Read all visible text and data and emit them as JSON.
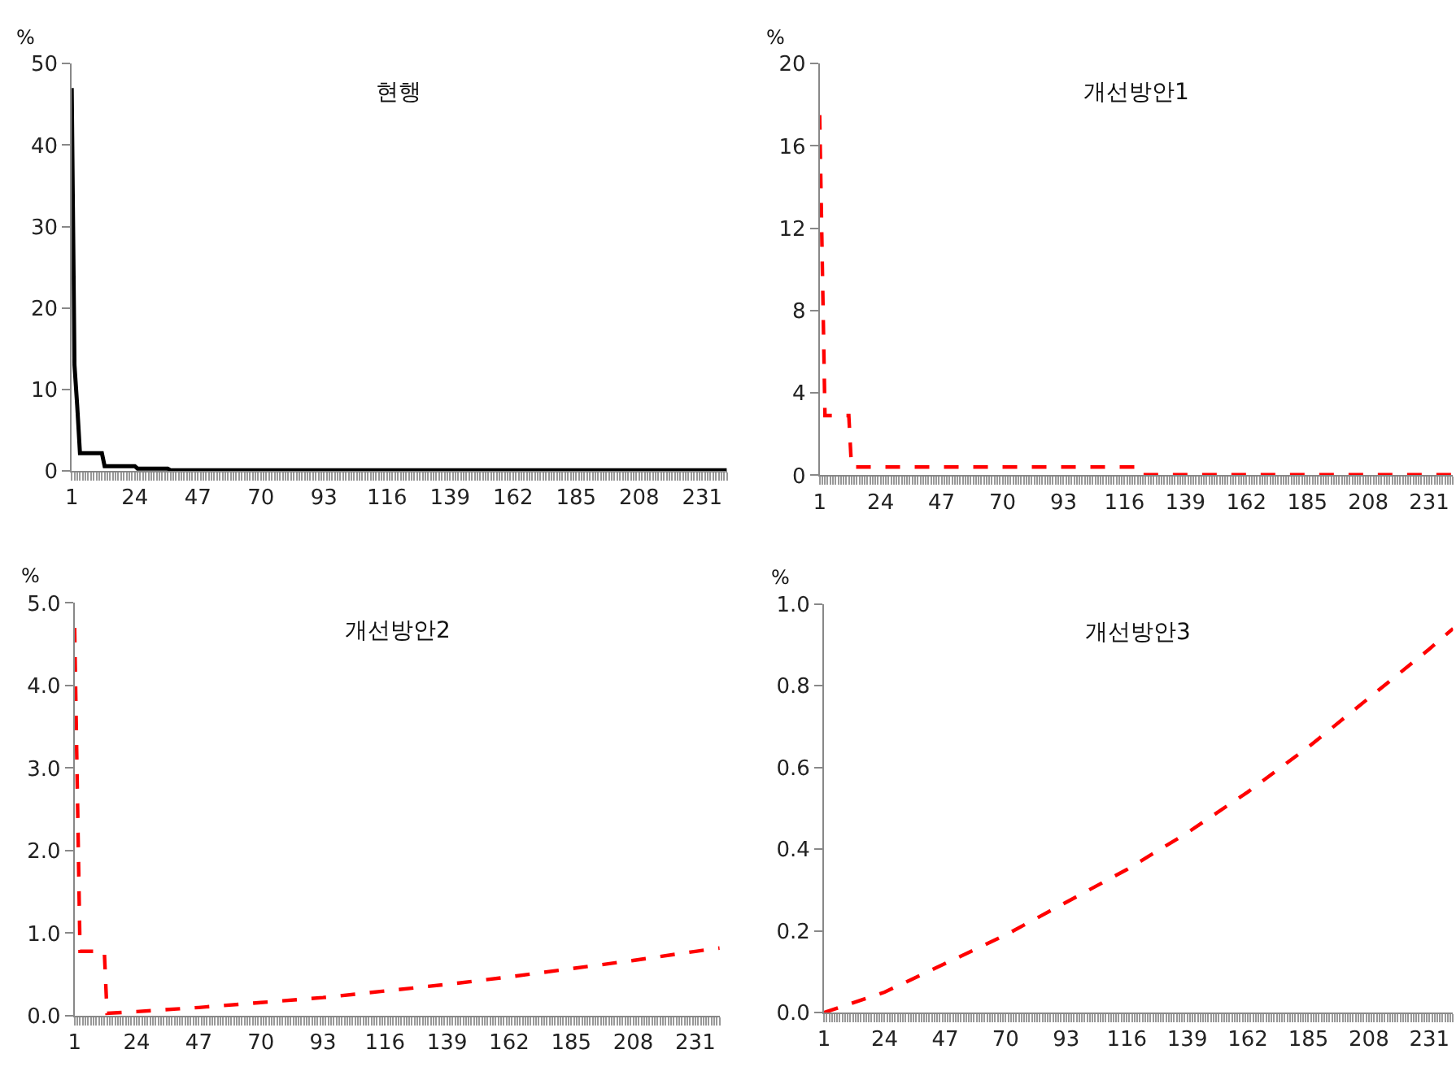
{
  "chart_data": [
    {
      "type": "line",
      "title": "현행",
      "ylabel": "%",
      "line_style": "solid",
      "color": "#000000",
      "x": [
        1,
        2,
        3,
        4,
        12,
        13,
        24,
        25,
        36,
        37,
        240
      ],
      "values": [
        47,
        13,
        8,
        2.2,
        2.2,
        0.6,
        0.6,
        0.3,
        0.3,
        0.1,
        0.1
      ],
      "xlim": [
        1,
        240
      ],
      "xticks": [
        1,
        24,
        47,
        70,
        93,
        116,
        139,
        162,
        185,
        208,
        231
      ],
      "ylim": [
        0,
        50
      ],
      "yticks": [
        0,
        10,
        20,
        30,
        40,
        50
      ]
    },
    {
      "type": "line",
      "title": "개선방안1",
      "ylabel": "%",
      "line_style": "dashed",
      "color": "#ff0000",
      "x": [
        1,
        3,
        12,
        13,
        121,
        122,
        240
      ],
      "values": [
        17.5,
        2.9,
        2.9,
        0.4,
        0.4,
        0.03,
        0.03
      ],
      "xlim": [
        1,
        240
      ],
      "xticks": [
        1,
        24,
        47,
        70,
        93,
        116,
        139,
        162,
        185,
        208,
        231
      ],
      "ylim": [
        0,
        20
      ],
      "yticks": [
        0,
        4,
        8,
        12,
        16,
        20
      ]
    },
    {
      "type": "line",
      "title": "개선방안2",
      "ylabel": "%",
      "line_style": "dashed",
      "color": "#ff0000",
      "x": [
        1,
        3,
        12,
        13,
        24,
        47,
        70,
        93,
        116,
        139,
        162,
        185,
        208,
        231,
        240
      ],
      "values": [
        4.7,
        0.78,
        0.78,
        0.03,
        0.05,
        0.1,
        0.16,
        0.22,
        0.3,
        0.38,
        0.47,
        0.57,
        0.67,
        0.78,
        0.82
      ],
      "xlim": [
        1,
        240
      ],
      "xticks": [
        1,
        24,
        47,
        70,
        93,
        116,
        139,
        162,
        185,
        208,
        231
      ],
      "ylim": [
        0,
        5
      ],
      "yticks": [
        {
          "value": 0,
          "label": "0.0"
        },
        {
          "value": 1,
          "label": "1.0"
        },
        {
          "value": 2,
          "label": "2.0"
        },
        {
          "value": 3,
          "label": "3.0"
        },
        {
          "value": 4,
          "label": "4.0"
        },
        {
          "value": 5,
          "label": "5.0"
        }
      ]
    },
    {
      "type": "line",
      "title": "개선방안3",
      "ylabel": "%",
      "line_style": "dashed",
      "color": "#ff0000",
      "x": [
        1,
        24,
        47,
        70,
        93,
        116,
        139,
        162,
        185,
        208,
        231,
        240
      ],
      "values": [
        0,
        0.05,
        0.12,
        0.19,
        0.27,
        0.35,
        0.44,
        0.54,
        0.65,
        0.77,
        0.89,
        0.94
      ],
      "xlim": [
        1,
        240
      ],
      "xticks": [
        1,
        24,
        47,
        70,
        93,
        116,
        139,
        162,
        185,
        208,
        231
      ],
      "ylim": [
        0,
        1
      ],
      "yticks": [
        {
          "value": 0,
          "label": "0.0"
        },
        {
          "value": 0.2,
          "label": "0.2"
        },
        {
          "value": 0.4,
          "label": "0.4"
        },
        {
          "value": 0.6,
          "label": "0.6"
        },
        {
          "value": 0.8,
          "label": "0.8"
        },
        {
          "value": 1,
          "label": "1.0"
        }
      ]
    }
  ]
}
